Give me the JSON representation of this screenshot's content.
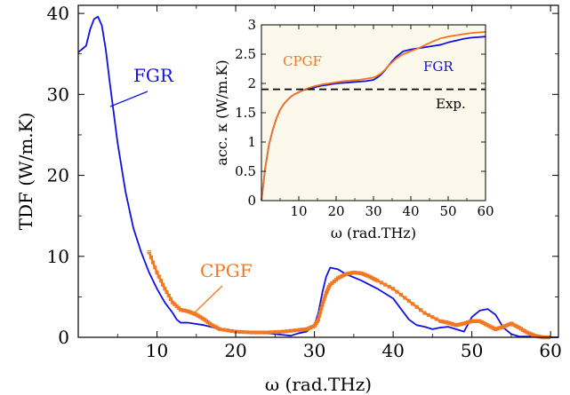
{
  "chart_data": [
    {
      "type": "line",
      "xlabel": "ω (rad.THz)",
      "ylabel": "TDF (W/m.K)",
      "xlim": [
        0,
        61
      ],
      "ylim": [
        0,
        41
      ],
      "xticks": [
        10,
        20,
        30,
        40,
        50,
        60
      ],
      "yticks": [
        0,
        10,
        20,
        30,
        40
      ],
      "grid": false,
      "series": [
        {
          "name": "FGR",
          "color": "#1010e0",
          "style": "line",
          "x": [
            0,
            1,
            1.5,
            2,
            2.5,
            3,
            3.5,
            4,
            5,
            6,
            7,
            8,
            9,
            10,
            11,
            12,
            12.5,
            13,
            14,
            16,
            18,
            20,
            22,
            24,
            25,
            26,
            27,
            28,
            29,
            30,
            30.5,
            31,
            31.5,
            32,
            33,
            34,
            36,
            38,
            40,
            41,
            42,
            43,
            44,
            45,
            46,
            47,
            48,
            49,
            50,
            51,
            52,
            53,
            54,
            55,
            56,
            57,
            58,
            59,
            60,
            61
          ],
          "y": [
            35.2,
            36,
            38,
            39.3,
            39.6,
            38.5,
            35.5,
            31.5,
            24,
            18,
            13.5,
            10.5,
            8,
            6,
            4.3,
            3,
            2.2,
            1.8,
            1.8,
            1.5,
            1.0,
            0.8,
            0.6,
            0.5,
            0.4,
            0.3,
            0.2,
            0.5,
            0.7,
            1.5,
            3,
            5.5,
            7.5,
            8.6,
            8.4,
            7.8,
            7,
            6,
            4.8,
            3.5,
            2.2,
            1.5,
            1.3,
            1.0,
            1.2,
            1.3,
            1.0,
            0.7,
            2.5,
            3.3,
            3.5,
            2.8,
            1.2,
            0.4,
            0.1,
            0.1,
            0.1,
            0,
            0,
            0
          ]
        },
        {
          "name": "CPGF",
          "color": "#f07820",
          "style": "markers",
          "x": [
            9,
            10,
            11,
            12,
            13,
            14,
            15,
            16,
            17,
            18,
            20,
            22,
            24,
            26,
            28,
            29,
            30,
            30.5,
            31,
            31.5,
            32,
            33,
            34,
            35,
            36,
            37,
            38,
            40,
            42,
            44,
            46,
            47,
            48,
            49,
            50,
            51,
            52,
            53,
            54,
            55,
            56,
            57,
            58,
            59,
            60
          ],
          "y": [
            10.5,
            8,
            6,
            4.3,
            3.4,
            3.2,
            2.8,
            2.2,
            1.5,
            1.0,
            0.7,
            0.6,
            0.6,
            0.7,
            0.9,
            1.0,
            1.4,
            2.2,
            4,
            5.5,
            6.5,
            7.3,
            7.8,
            8.0,
            7.9,
            7.5,
            7,
            6,
            4.5,
            3,
            2,
            1.8,
            1.5,
            1.7,
            2.0,
            2.0,
            1.5,
            1.0,
            1.3,
            1.7,
            1.2,
            0.6,
            0.2,
            0,
            0
          ]
        }
      ],
      "annotations": [
        "FGR",
        "CPGF"
      ]
    },
    {
      "type": "line",
      "xlabel": "ω (rad.THz)",
      "ylabel": "acc. κ (W/m.K)",
      "xlim": [
        0,
        60
      ],
      "ylim": [
        0,
        3
      ],
      "xticks": [
        10,
        20,
        30,
        40,
        50,
        60
      ],
      "yticks": [
        0,
        0.5,
        1,
        1.5,
        2,
        2.5,
        3
      ],
      "ytick_labels": [
        "0",
        "0.5",
        "1",
        "1.5",
        "2",
        "2.5",
        "3"
      ],
      "background": "#fdf8ec",
      "series": [
        {
          "name": "FGR",
          "color": "#1010e0",
          "x": [
            0,
            1,
            2,
            3,
            4,
            5,
            6,
            7,
            8,
            9,
            10,
            11,
            12,
            14,
            16,
            18,
            20,
            22,
            24,
            26,
            28,
            30,
            31,
            32,
            33,
            34,
            35,
            36,
            37,
            38,
            40,
            42,
            44,
            46,
            48,
            50,
            52,
            54,
            56,
            58,
            60
          ],
          "y": [
            0,
            0.55,
            0.95,
            1.2,
            1.4,
            1.55,
            1.65,
            1.72,
            1.78,
            1.82,
            1.85,
            1.88,
            1.9,
            1.93,
            1.96,
            1.98,
            2.0,
            2.01,
            2.02,
            2.03,
            2.04,
            2.06,
            2.1,
            2.15,
            2.22,
            2.3,
            2.38,
            2.45,
            2.5,
            2.55,
            2.58,
            2.6,
            2.62,
            2.64,
            2.66,
            2.7,
            2.73,
            2.76,
            2.78,
            2.79,
            2.8
          ]
        },
        {
          "name": "CPGF",
          "color": "#f07820",
          "x": [
            0,
            1,
            2,
            3,
            4,
            5,
            6,
            7,
            8,
            9,
            10,
            11,
            12,
            14,
            16,
            18,
            20,
            22,
            24,
            26,
            28,
            30,
            31,
            32,
            33,
            34,
            35,
            36,
            37,
            38,
            40,
            42,
            44,
            46,
            48,
            50,
            52,
            54,
            56,
            58,
            60
          ],
          "y": [
            0,
            0.55,
            0.95,
            1.2,
            1.4,
            1.55,
            1.65,
            1.72,
            1.78,
            1.82,
            1.85,
            1.88,
            1.91,
            1.95,
            1.98,
            2.0,
            2.02,
            2.04,
            2.05,
            2.06,
            2.08,
            2.1,
            2.13,
            2.17,
            2.23,
            2.3,
            2.36,
            2.42,
            2.46,
            2.5,
            2.55,
            2.6,
            2.66,
            2.72,
            2.77,
            2.8,
            2.82,
            2.84,
            2.86,
            2.87,
            2.88
          ]
        },
        {
          "name": "Exp.",
          "color": "#000000",
          "style": "dashed",
          "y_const": 1.9
        }
      ],
      "annotations": [
        "CPGF",
        "FGR",
        "Exp."
      ]
    }
  ]
}
